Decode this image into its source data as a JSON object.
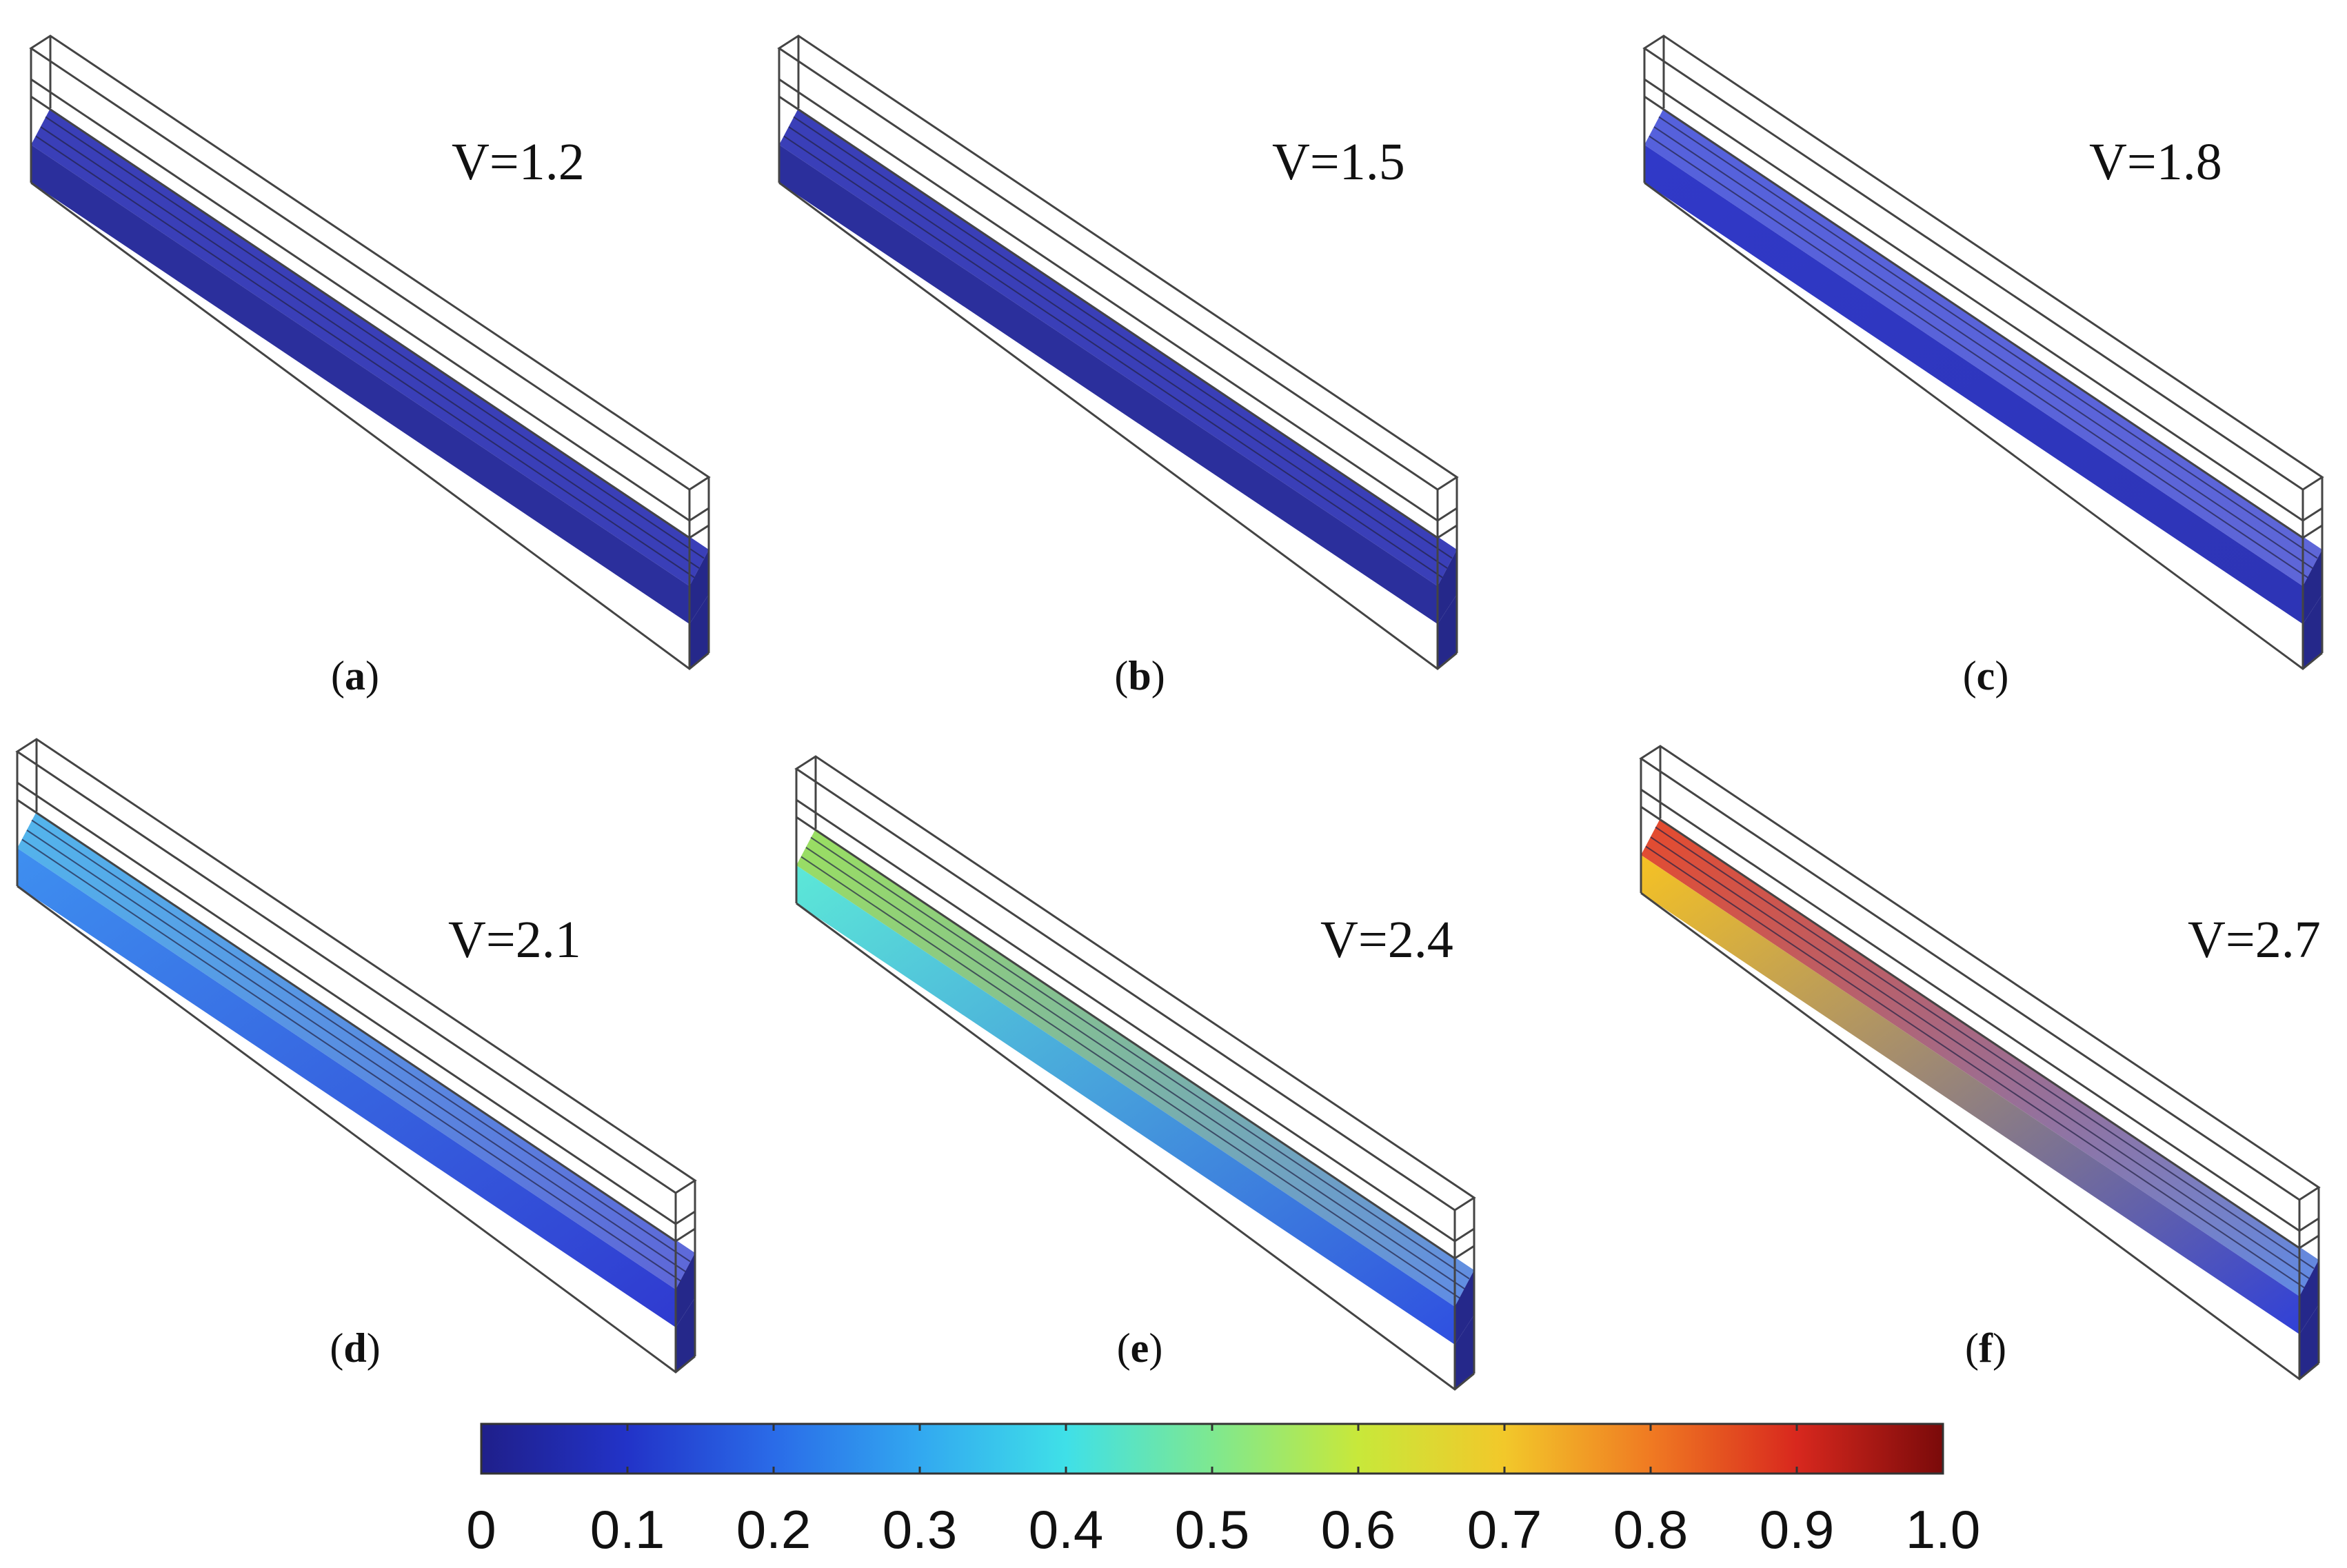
{
  "panels": [
    {
      "letter": "a",
      "voltage_label": "V=1.2",
      "colors": {
        "top_layer": [
          "#3a3fb8",
          "#3a3fb8"
        ],
        "front_face": [
          "#2b2f9c",
          "#2b2f9c"
        ],
        "bottom_strip": "#25288a"
      }
    },
    {
      "letter": "b",
      "voltage_label": "V=1.5",
      "colors": {
        "top_layer": [
          "#3a3fb8",
          "#3a3fb8"
        ],
        "front_face": [
          "#2b2f9c",
          "#2b2f9c"
        ],
        "bottom_strip": "#25288a"
      }
    },
    {
      "letter": "c",
      "voltage_label": "V=1.8",
      "colors": {
        "top_layer": [
          "#5561dc",
          "#5e66d8"
        ],
        "front_face": [
          "#3039c8",
          "#2d34b5"
        ],
        "bottom_strip": "#25288a"
      }
    },
    {
      "letter": "d",
      "voltage_label": "V=2.1",
      "colors": {
        "top_layer": [
          "#53b6ec",
          "#5e66d8"
        ],
        "front_face": [
          "#3e8ff0",
          "#2f3ad0"
        ],
        "bottom_strip": "#25288a"
      }
    },
    {
      "letter": "e",
      "voltage_label": "V=2.4",
      "colors": {
        "top_layer": [
          "#9be060",
          "#5f8be6"
        ],
        "front_face": [
          "#5ce8d8",
          "#2f4fe0"
        ],
        "bottom_strip": "#25288a"
      }
    },
    {
      "letter": "f",
      "voltage_label": "V=2.7",
      "colors": {
        "top_layer": [
          "#e64a2c",
          "#5f8be6"
        ],
        "front_face": [
          "#f5c224",
          "#3040d8"
        ],
        "bottom_strip": "#25288a"
      }
    }
  ],
  "colorbar": {
    "tick_labels": [
      "0",
      "0.1",
      "0.2",
      "0.3",
      "0.4",
      "0.5",
      "0.6",
      "0.7",
      "0.8",
      "0.9",
      "1.0"
    ],
    "range": [
      0,
      1.0
    ],
    "colormap": "jet",
    "color_stops": [
      "#1f1f8a",
      "#2233c8",
      "#2a6be8",
      "#32a8f0",
      "#3fe0e8",
      "#7ee890",
      "#c8e83a",
      "#f2c82a",
      "#f07a22",
      "#d8281e",
      "#7a0a0a"
    ]
  }
}
